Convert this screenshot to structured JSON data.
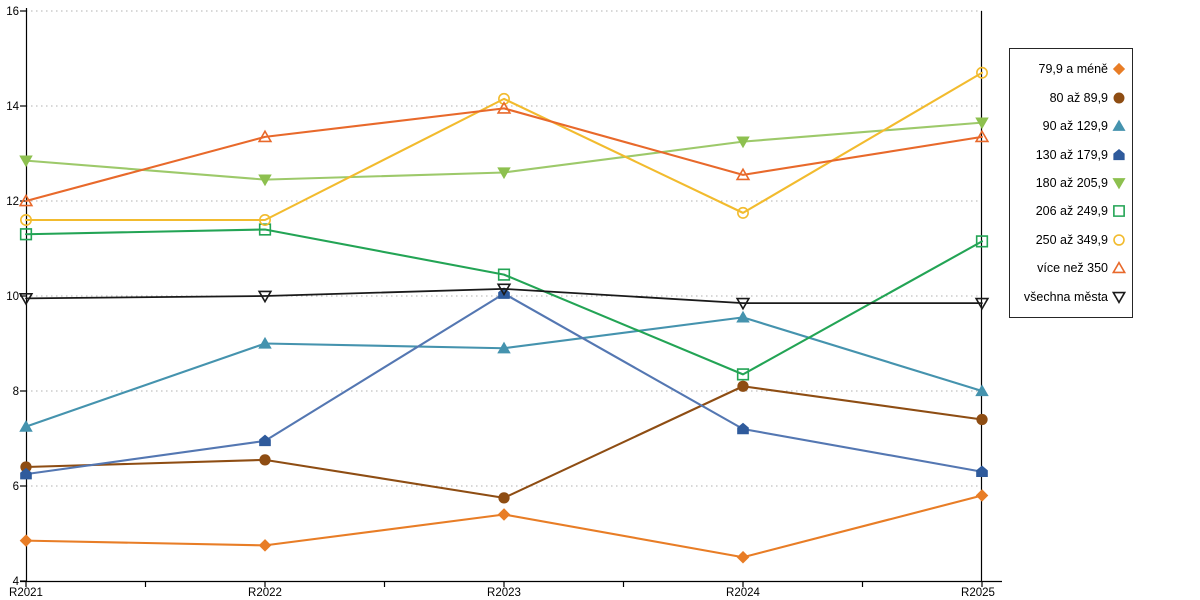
{
  "chart_data": {
    "type": "line",
    "title": "",
    "xlabel": "",
    "ylabel": "",
    "categories": [
      "R2021",
      "R2022",
      "R2023",
      "R2024",
      "R2025"
    ],
    "yticks": [
      4,
      6,
      8,
      10,
      12,
      14,
      16
    ],
    "ylim": [
      4,
      16
    ],
    "grid": "horizontal-dotted",
    "grid_color": "#b0b0b0",
    "axis_color": "#000000",
    "legend_position": "right",
    "series": [
      {
        "name": "79,9 a méně",
        "marker": "diamond",
        "style": "filled",
        "color": "#e87d26",
        "values": [
          4.85,
          4.75,
          5.4,
          4.5,
          5.8
        ]
      },
      {
        "name": "80 až 89,9",
        "marker": "circle",
        "style": "filled",
        "color": "#8e4d13",
        "values": [
          6.4,
          6.55,
          5.75,
          8.1,
          7.4
        ]
      },
      {
        "name": "90 až 129,9",
        "marker": "triangle-up",
        "style": "filled",
        "color": "#4593ae",
        "values": [
          7.25,
          9.0,
          8.9,
          9.55,
          8.0
        ]
      },
      {
        "name": "130 až 179,9",
        "marker": "pentagon",
        "style": "filled",
        "color": "#2f5b9c",
        "line_color": "#5477b2",
        "values": [
          6.25,
          6.95,
          10.05,
          7.2,
          6.3
        ]
      },
      {
        "name": "180 až 205,9",
        "marker": "triangle-down",
        "style": "filled",
        "color": "#8dc04f",
        "line_color": "#9dc96a",
        "values": [
          12.85,
          12.45,
          12.6,
          13.25,
          13.65
        ]
      },
      {
        "name": "206 až 249,9",
        "marker": "square",
        "style": "open",
        "color": "#23a455",
        "values": [
          11.3,
          11.4,
          10.45,
          8.35,
          11.15
        ]
      },
      {
        "name": "250 až 349,9",
        "marker": "circle",
        "style": "open",
        "color": "#f2bb2e",
        "values": [
          11.6,
          11.6,
          14.15,
          11.75,
          14.7
        ]
      },
      {
        "name": "více než 350",
        "marker": "triangle-up",
        "style": "open",
        "color": "#e8692b",
        "values": [
          12.0,
          13.35,
          13.95,
          12.55,
          13.35
        ]
      },
      {
        "name": "všechna města",
        "marker": "triangle-down",
        "style": "open",
        "color": "#1a1a1a",
        "values": [
          9.95,
          10.0,
          10.15,
          9.85,
          9.85
        ]
      }
    ]
  }
}
